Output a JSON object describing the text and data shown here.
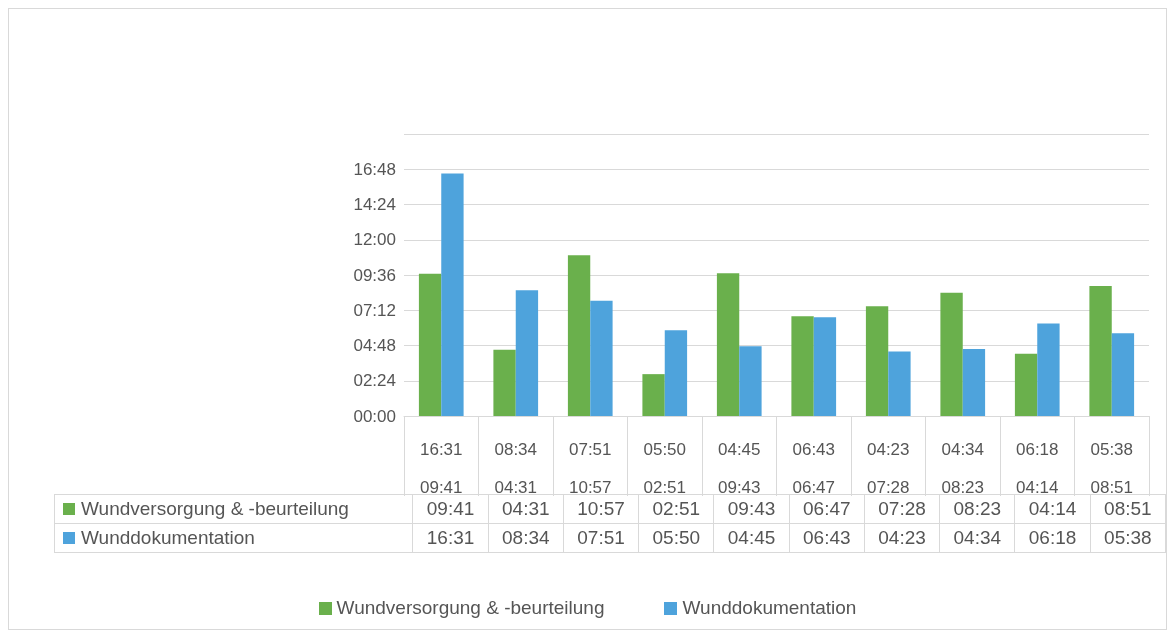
{
  "chart_data": {
    "type": "bar",
    "categories": [
      "16:31\n09:41",
      "08:34\n04:31",
      "07:51\n10:57",
      "05:50\n02:51",
      "04:45\n09:43",
      "06:43\n06:47",
      "04:23\n07:28",
      "04:34\n08:23",
      "06:18\n04:14",
      "05:38\n08:51"
    ],
    "series": [
      {
        "name": "Wundversorgung & -beurteilung",
        "color": "#6ab04c",
        "values": [
          9.6833,
          4.5167,
          10.95,
          2.85,
          9.7167,
          6.7833,
          7.4667,
          8.3833,
          4.2333,
          8.85
        ],
        "value_labels": [
          "09:41",
          "04:31",
          "10:57",
          "02:51",
          "09:43",
          "06:47",
          "07:28",
          "08:23",
          "04:14",
          "08:51"
        ]
      },
      {
        "name": "Wunddokumentation",
        "color": "#4ea3dc",
        "values": [
          16.5167,
          8.5667,
          7.85,
          5.8333,
          4.75,
          6.7167,
          4.3833,
          4.5667,
          6.3,
          5.6333
        ],
        "value_labels": [
          "16:31",
          "08:34",
          "07:51",
          "05:50",
          "04:45",
          "06:43",
          "04:23",
          "04:34",
          "06:18",
          "05:38"
        ]
      }
    ],
    "ylim": [
      0,
      19.2
    ],
    "yticks": [
      {
        "value": 0,
        "label": "00:00"
      },
      {
        "value": 2.4,
        "label": "02:24"
      },
      {
        "value": 4.8,
        "label": "04:48"
      },
      {
        "value": 7.2,
        "label": "07:12"
      },
      {
        "value": 9.6,
        "label": "09:36"
      },
      {
        "value": 12,
        "label": "12:00"
      },
      {
        "value": 14.4,
        "label": "14:24"
      },
      {
        "value": 16.8,
        "label": "16:48"
      },
      {
        "value": 19.2,
        "label": null
      }
    ],
    "grid": "y",
    "legend": "bottom"
  }
}
